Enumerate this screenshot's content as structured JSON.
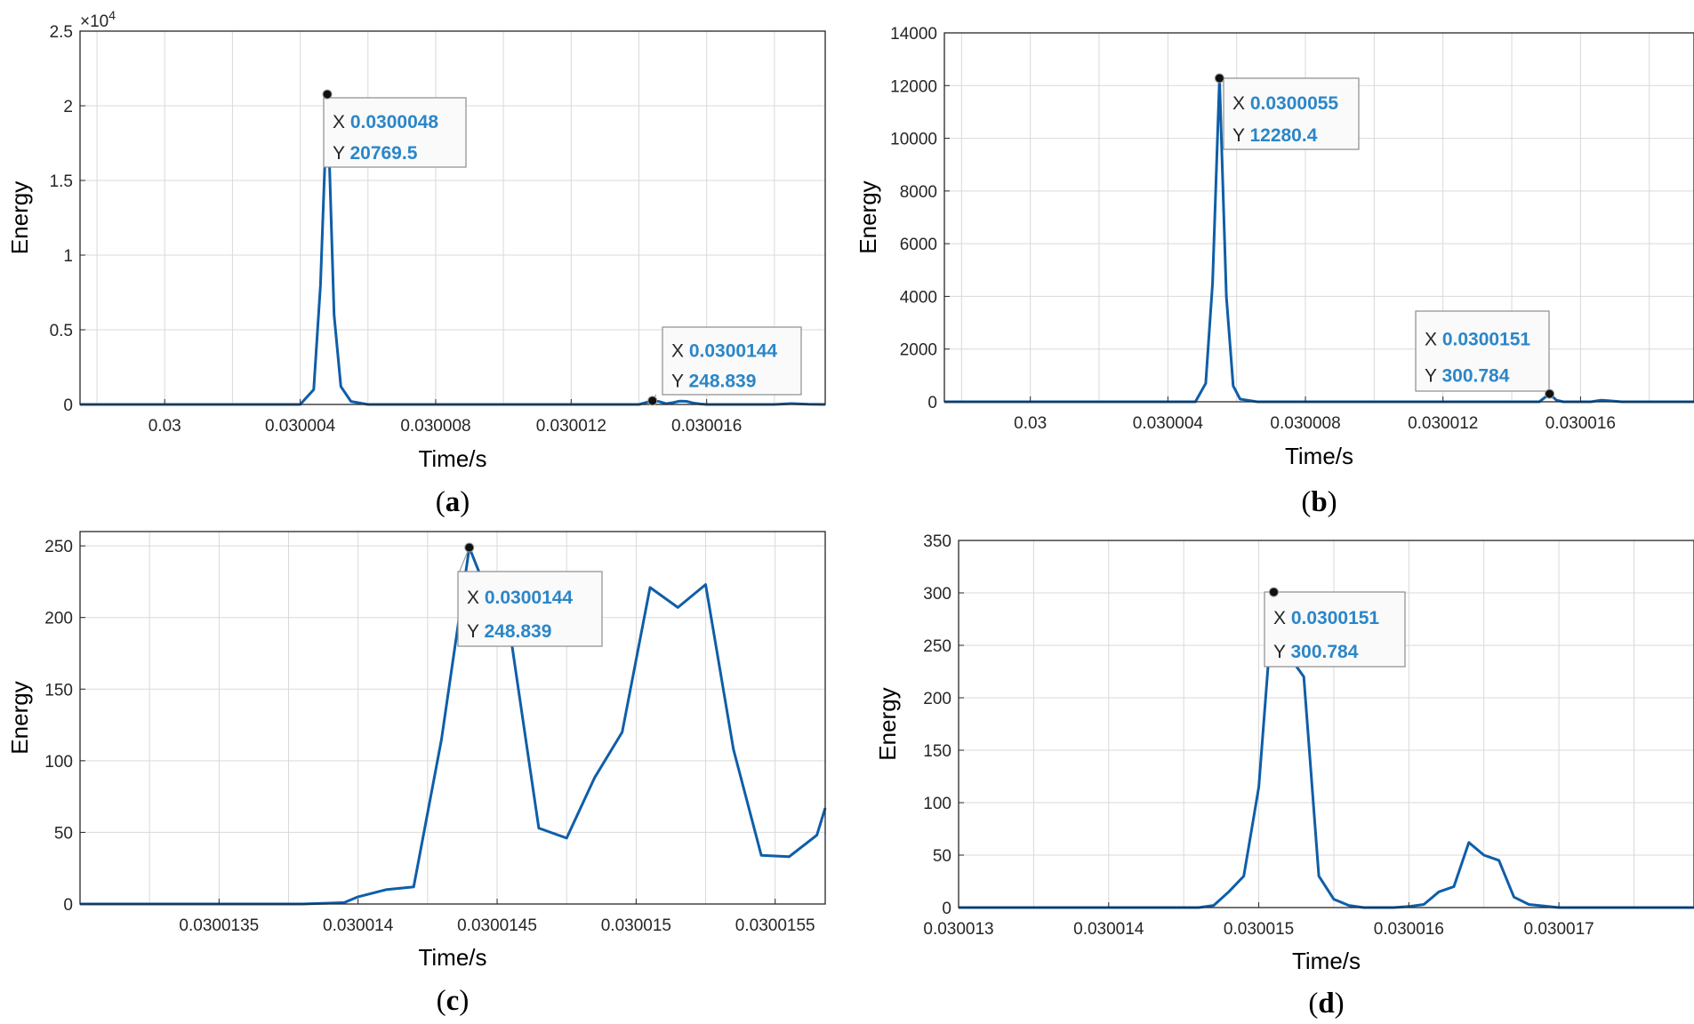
{
  "colors": {
    "line": "#0e5ea8",
    "tip_value": "#2b86c8",
    "grid": "#d9d9d9"
  },
  "chart_data": [
    {
      "type": "line",
      "id": "a",
      "panel_label": "a",
      "xlabel": "Time/s",
      "ylabel": "Energy",
      "xlim": [
        0.0299975,
        0.0300195
      ],
      "ylim": [
        0,
        25000
      ],
      "y_exponent_label": "×10",
      "y_exponent_power": "4",
      "xticks": [
        0.03,
        0.030004,
        0.030008,
        0.030012,
        0.030016
      ],
      "xtick_labels": [
        "0.03",
        "0.030004",
        "0.030008",
        "0.030012",
        "0.030016"
      ],
      "yticks": [
        0,
        5000,
        10000,
        15000,
        20000,
        25000
      ],
      "ytick_labels": [
        "0",
        "0.5",
        "1",
        "1.5",
        "2",
        "2.5"
      ],
      "xgrid_minor": 2e-06,
      "series": [
        {
          "name": "Energy",
          "x": [
            0.0299975,
            0.030004,
            0.0300044,
            0.0300046,
            0.0300048,
            0.030005,
            0.0300052,
            0.0300055,
            0.030006,
            0.030014,
            0.0300144,
            0.0300146,
            0.0300148,
            0.030015,
            0.0300152,
            0.0300154,
            0.0300156,
            0.0300158,
            0.030016,
            0.030018,
            0.0300185,
            0.030019,
            0.0300195
          ],
          "y": [
            0,
            0,
            1000,
            8000,
            20769.5,
            6000,
            1200,
            200,
            0,
            0,
            248.839,
            190,
            55,
            120,
            220,
            210,
            100,
            35,
            0,
            0,
            60,
            10,
            0
          ]
        }
      ],
      "datatips": [
        {
          "x_label": "X",
          "x_value": "0.0300048",
          "y_label": "Y",
          "y_value": "20769.5",
          "at_x": 0.0300048,
          "at_y": 20769.5
        },
        {
          "x_label": "X",
          "x_value": "0.0300144",
          "y_label": "Y",
          "y_value": "248.839",
          "at_x": 0.0300144,
          "at_y": 248.839
        }
      ]
    },
    {
      "type": "line",
      "id": "b",
      "panel_label": "b",
      "xlabel": "Time/s",
      "ylabel": "Energy",
      "xlim": [
        0.0299975,
        0.0300193
      ],
      "ylim": [
        0,
        14000
      ],
      "xticks": [
        0.03,
        0.030004,
        0.030008,
        0.030012,
        0.030016
      ],
      "xtick_labels": [
        "0.03",
        "0.030004",
        "0.030008",
        "0.030012",
        "0.030016"
      ],
      "yticks": [
        0,
        2000,
        4000,
        6000,
        8000,
        10000,
        12000,
        14000
      ],
      "ytick_labels": [
        "0",
        "2000",
        "4000",
        "6000",
        "8000",
        "10000",
        "12000",
        "14000"
      ],
      "xgrid_minor": 2e-06,
      "series": [
        {
          "name": "Energy",
          "x": [
            0.0299975,
            0.0300048,
            0.0300051,
            0.0300053,
            0.0300055,
            0.0300057,
            0.0300059,
            0.0300061,
            0.0300066,
            0.0300148,
            0.0300151,
            0.0300153,
            0.0300155,
            0.0300163,
            0.0300166,
            0.0300168,
            0.0300172,
            0.0300193
          ],
          "y": [
            0,
            0,
            700,
            4500,
            12280.4,
            4000,
            600,
            100,
            0,
            0,
            300.784,
            60,
            0,
            0,
            60,
            40,
            0,
            0
          ]
        }
      ],
      "datatips": [
        {
          "x_label": "X",
          "x_value": "0.0300055",
          "y_label": "Y",
          "y_value": "12280.4",
          "at_x": 0.0300055,
          "at_y": 12280.4
        },
        {
          "x_label": "X",
          "x_value": "0.0300151",
          "y_label": "Y",
          "y_value": "300.784",
          "at_x": 0.0300151,
          "at_y": 300.784
        }
      ]
    },
    {
      "type": "line",
      "id": "c",
      "panel_label": "c",
      "xlabel": "Time/s",
      "ylabel": "Energy",
      "xlim": [
        0.030013,
        0.03001568
      ],
      "ylim": [
        0,
        260
      ],
      "xticks": [
        0.0300135,
        0.030014,
        0.0300145,
        0.030015,
        0.0300155
      ],
      "xtick_labels": [
        "0.0300135",
        "0.030014",
        "0.0300145",
        "0.030015",
        "0.0300155"
      ],
      "yticks": [
        0,
        50,
        100,
        150,
        200,
        250
      ],
      "ytick_labels": [
        "0",
        "50",
        "100",
        "150",
        "200",
        "250"
      ],
      "xgrid_minor": 2.5e-07,
      "series": [
        {
          "name": "Energy",
          "x": [
            0.030013,
            0.0300138,
            0.03001395,
            0.030014,
            0.0300141,
            0.0300142,
            0.0300143,
            0.0300144,
            0.0300145,
            0.03001455,
            0.03001465,
            0.03001475,
            0.03001485,
            0.03001495,
            0.03001505,
            0.03001515,
            0.03001525,
            0.03001535,
            0.03001545,
            0.03001555,
            0.03001565,
            0.03001568
          ],
          "y": [
            0,
            0,
            1,
            5,
            10,
            12,
            115,
            248.839,
            200,
            185,
            53,
            46,
            88,
            120,
            221,
            207,
            223,
            108,
            34,
            33,
            48,
            67
          ]
        }
      ],
      "datatips": [
        {
          "x_label": "X",
          "x_value": "0.0300144",
          "y_label": "Y",
          "y_value": "248.839",
          "at_x": 0.0300144,
          "at_y": 248.839
        }
      ]
    },
    {
      "type": "line",
      "id": "d",
      "panel_label": "d",
      "xlabel": "Time/s",
      "ylabel": "Energy",
      "xlim": [
        0.030013,
        0.0300179
      ],
      "ylim": [
        0,
        350
      ],
      "xticks": [
        0.030013,
        0.030014,
        0.030015,
        0.030016,
        0.030017
      ],
      "xtick_labels": [
        "0.030013",
        "0.030014",
        "0.030015",
        "0.030016",
        "0.030017"
      ],
      "yticks": [
        0,
        50,
        100,
        150,
        200,
        250,
        300,
        350
      ],
      "ytick_labels": [
        "0",
        "50",
        "100",
        "150",
        "200",
        "250",
        "300",
        "350"
      ],
      "xgrid_minor": 5e-07,
      "series": [
        {
          "name": "Energy",
          "x": [
            0.030013,
            0.0300146,
            0.0300147,
            0.0300148,
            0.0300149,
            0.030015,
            0.0300151,
            0.0300152,
            0.0300153,
            0.0300154,
            0.0300155,
            0.0300156,
            0.0300157,
            0.0300159,
            0.030016,
            0.0300161,
            0.0300162,
            0.0300163,
            0.0300164,
            0.0300165,
            0.0300166,
            0.0300167,
            0.0300168,
            0.030017,
            0.0300179
          ],
          "y": [
            0,
            0,
            2,
            15,
            30,
            115,
            300.784,
            240,
            220,
            30,
            8,
            2,
            0,
            0,
            1,
            3,
            15,
            20,
            62,
            50,
            45,
            10,
            3,
            0,
            0
          ]
        }
      ],
      "datatips": [
        {
          "x_label": "X",
          "x_value": "0.0300151",
          "y_label": "Y",
          "y_value": "300.784",
          "at_x": 0.0300151,
          "at_y": 300.784
        }
      ]
    }
  ]
}
